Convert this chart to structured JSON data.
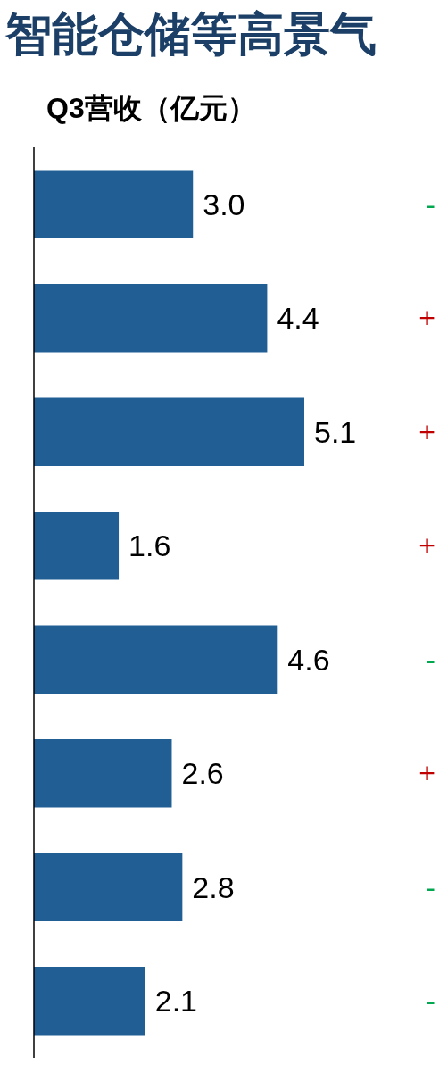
{
  "chart_data": {
    "type": "bar",
    "orientation": "horizontal",
    "title": "智能仓储等高景气",
    "subtitle": "Q3营收（亿元）",
    "categories": [
      null,
      null,
      null,
      null,
      null,
      null,
      null,
      null
    ],
    "values": [
      3.0,
      4.4,
      5.1,
      1.6,
      4.6,
      2.6,
      2.8,
      2.1
    ],
    "color": "#215e93",
    "value_labels": [
      "3.0",
      "4.4",
      "5.1",
      "1.6",
      "4.6",
      "2.6",
      "2.8",
      "2.1"
    ],
    "annotations": [
      "-",
      "+",
      "+",
      "+",
      "-",
      "+",
      "-",
      "-"
    ]
  }
}
